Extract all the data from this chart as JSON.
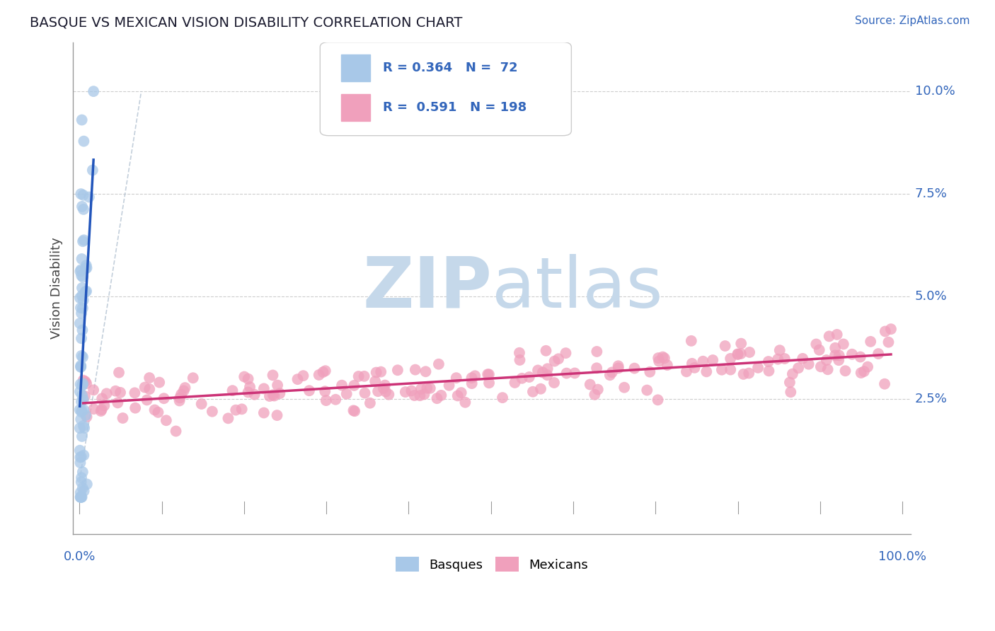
{
  "title": "BASQUE VS MEXICAN VISION DISABILITY CORRELATION CHART",
  "source_text": "Source: ZipAtlas.com",
  "ylabel": "Vision Disability",
  "y_ticks": [
    0.025,
    0.05,
    0.075,
    0.1
  ],
  "y_tick_labels": [
    "2.5%",
    "5.0%",
    "7.5%",
    "10.0%"
  ],
  "basque_R": 0.364,
  "basque_N": 72,
  "mexican_R": 0.591,
  "mexican_N": 198,
  "basque_color": "#a8c8e8",
  "basque_line_color": "#2255bb",
  "mexican_color": "#f0a0bc",
  "mexican_line_color": "#cc3377",
  "watermark_zip": "ZIP",
  "watermark_atlas": "atlas",
  "watermark_color": "#c5d8ea",
  "legend_blue_text": "Basques",
  "legend_pink_text": "Mexicans",
  "background_color": "#ffffff",
  "grid_color": "#c8c8c8",
  "title_color": "#1a1a2e",
  "label_color": "#3366bb",
  "axis_color": "#999999"
}
